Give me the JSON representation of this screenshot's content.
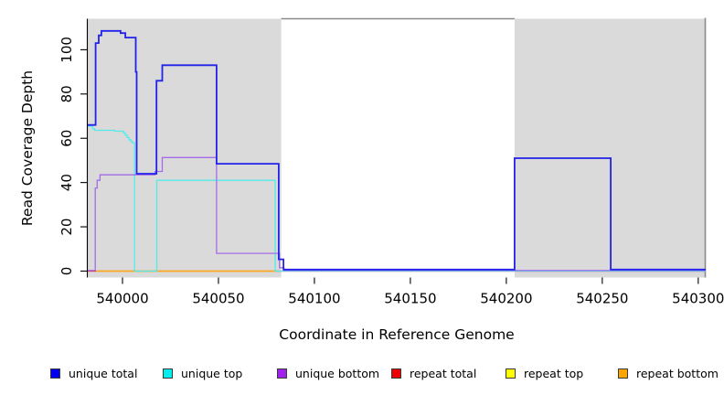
{
  "chart_data": {
    "type": "line",
    "step": "after",
    "title": "",
    "x_label": "Coordinate in Reference Genome",
    "y_label": "Read Coverage Depth",
    "x_range": [
      539981.9,
      540303.9
    ],
    "y_range": [
      -2.9,
      114
    ],
    "x_ticks": [
      540000,
      540050,
      540100,
      540150,
      540200,
      540250,
      540300
    ],
    "y_ticks": [
      0,
      20,
      40,
      60,
      80,
      100
    ],
    "grid": false,
    "region_color": "#dadada",
    "border_color": "#8b8b8b",
    "shaded_regions": [
      {
        "x0": 539981.9,
        "x1": 540082.7
      },
      {
        "x0": 540204.3,
        "x1": 540303.9
      }
    ],
    "series": [
      {
        "id": "repeat-total",
        "name": "repeat total",
        "color": "#dd2222",
        "width": 1.3,
        "points": [
          [
            539981.9,
            0
          ],
          [
            540303.9,
            0
          ]
        ]
      },
      {
        "id": "repeat-top",
        "name": "repeat top",
        "color": "#eeee00",
        "width": 1.3,
        "points": [
          [
            539986.3,
            0
          ],
          [
            540080.3,
            0
          ]
        ]
      },
      {
        "id": "repeat-bottom",
        "name": "repeat bottom",
        "color": "#ffa520",
        "width": 1.5,
        "points": [
          [
            539986.3,
            0
          ],
          [
            540080.3,
            0
          ]
        ]
      },
      {
        "id": "unique-top",
        "name": "unique top",
        "color": "#55eaea",
        "width": 1.3,
        "points": [
          [
            539981.9,
            65.5
          ],
          [
            539984.4,
            64.3
          ],
          [
            539985.5,
            63.6
          ],
          [
            539996,
            63.2
          ],
          [
            540000.5,
            62.4
          ],
          [
            540001.5,
            61.4
          ],
          [
            540002.5,
            60.4
          ],
          [
            540003.4,
            59.4
          ],
          [
            540004.3,
            58.6
          ],
          [
            540005.1,
            58
          ],
          [
            540006.3,
            0
          ],
          [
            540017.9,
            41
          ],
          [
            540079.6,
            0
          ],
          [
            540303.9,
            0
          ]
        ]
      },
      {
        "id": "unique-bottom",
        "name": "unique bottom",
        "color": "#a46ce8",
        "width": 1.3,
        "points": [
          [
            539981.9,
            0.3
          ],
          [
            539985.8,
            37.5
          ],
          [
            539986.8,
            41
          ],
          [
            539988.3,
            43.5
          ],
          [
            540017,
            45
          ],
          [
            540020.7,
            51.3
          ],
          [
            540049,
            8
          ],
          [
            540081.8,
            1.5
          ],
          [
            540084.1,
            0.3
          ],
          [
            540303.9,
            0.3
          ]
        ]
      },
      {
        "id": "unique-total",
        "name": "unique total",
        "color": "#2222e8",
        "width": 1.8,
        "points": [
          [
            539981.9,
            66
          ],
          [
            539986,
            103
          ],
          [
            539987.6,
            106.5
          ],
          [
            539989,
            108.5
          ],
          [
            539999,
            107.5
          ],
          [
            540001.5,
            105.5
          ],
          [
            540006.9,
            90
          ],
          [
            540007.4,
            44
          ],
          [
            540017.7,
            86
          ],
          [
            540020.7,
            93
          ],
          [
            540049,
            48.5
          ],
          [
            540081.4,
            5.3
          ],
          [
            540083.9,
            0.7
          ],
          [
            540204.3,
            51
          ],
          [
            540254.4,
            0.7
          ],
          [
            540303.9,
            0.7
          ]
        ]
      }
    ]
  },
  "legend": {
    "items": [
      {
        "label": "unique total",
        "color": "#0000ee"
      },
      {
        "label": "unique top",
        "color": "#00eeee"
      },
      {
        "label": "unique bottom",
        "color": "#a020f0"
      },
      {
        "label": "repeat total",
        "color": "#ee0000"
      },
      {
        "label": "repeat top",
        "color": "#ffff00"
      },
      {
        "label": "repeat bottom",
        "color": "#ffa500"
      }
    ]
  }
}
